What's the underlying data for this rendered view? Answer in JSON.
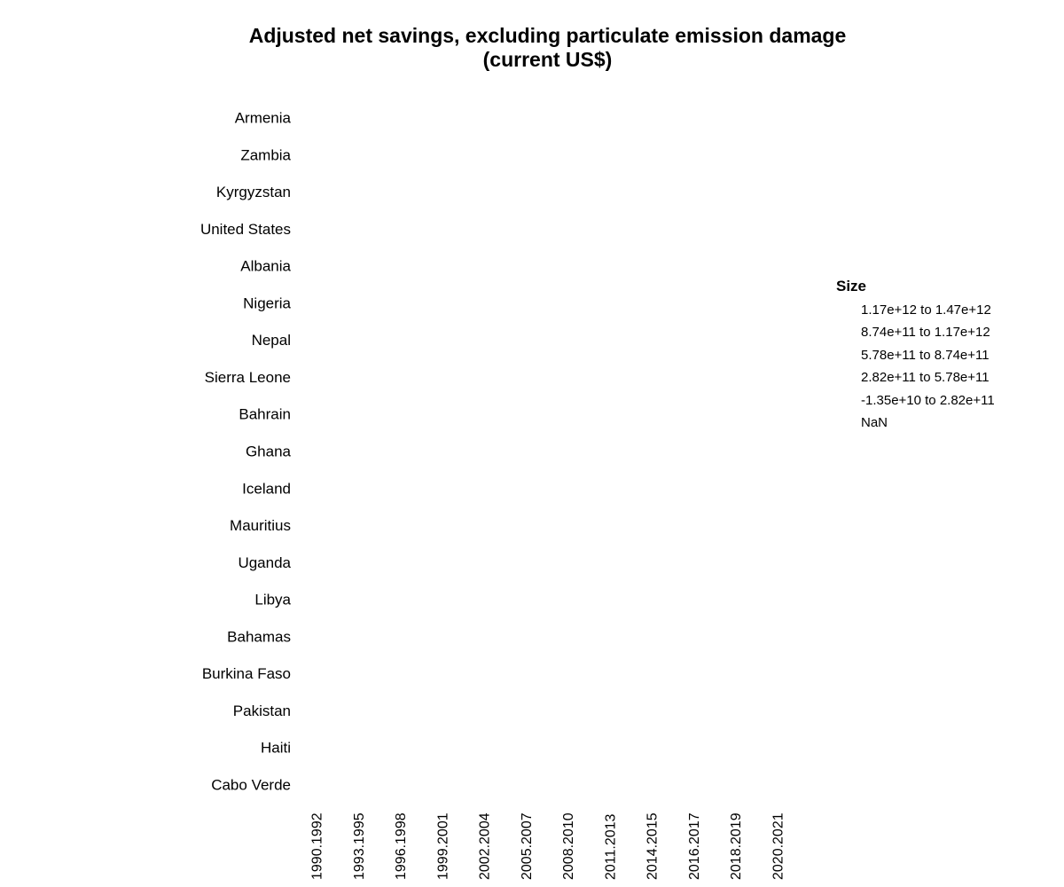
{
  "chart_data": {
    "type": "scatter",
    "title": "Adjusted net savings, excluding particulate emission damage",
    "subtitle": "(current US$)",
    "xlabel": "",
    "ylabel": "",
    "categories_x": [
      "1990.1992",
      "1993.1995",
      "1996.1998",
      "1999.2001",
      "2002.2004",
      "2005.2007",
      "2008.2010",
      "2011.2013",
      "2014.2015",
      "2016.2017",
      "2018.2019",
      "2020.2021"
    ],
    "categories_y": [
      "Armenia",
      "Zambia",
      "Kyrgyzstan",
      "United States",
      "Albania",
      "Nigeria",
      "Nepal",
      "Sierra Leone",
      "Bahrain",
      "Ghana",
      "Iceland",
      "Mauritius",
      "Uganda",
      "Libya",
      "Bahamas",
      "Burkina Faso",
      "Pakistan",
      "Haiti",
      "Cabo Verde"
    ],
    "points": [],
    "grid": false,
    "legend": {
      "title": "Size",
      "placement": "right",
      "items": [
        "1.17e+12 to 1.47e+12",
        "8.74e+11 to 1.17e+12",
        "5.78e+11 to 8.74e+11",
        "2.82e+11 to 5.78e+11",
        "-1.35e+10 to 2.82e+11",
        "NaN"
      ]
    }
  }
}
